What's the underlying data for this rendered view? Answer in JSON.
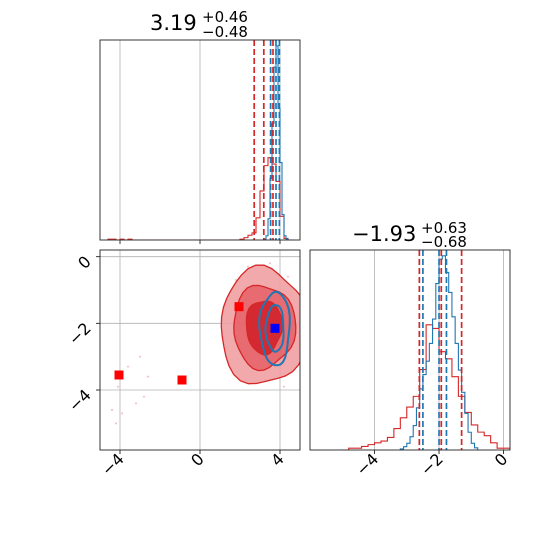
{
  "colors": {
    "red": "#d62728",
    "blue": "#1f77b4",
    "marker_blue": "#0000ff",
    "marker_red": "#ff0000",
    "red_fill_outer": "#f0a0a3",
    "red_fill_mid": "#e56469",
    "red_fill_inner": "#d3222a"
  },
  "chart_data": [
    {
      "type": "histogram",
      "panel": "top-left",
      "title": {
        "value": "3.19",
        "plus": "+0.46",
        "minus": "−0.48"
      },
      "xlim": [
        -5,
        5
      ],
      "grid": true,
      "series": [
        {
          "color": "red",
          "bin_edges": [
            -4.6,
            -4.4,
            -4.2,
            -4.0,
            -3.8,
            -3.6,
            -3.4,
            -3.2,
            -3.0,
            -2.8,
            -2.6,
            -2.4,
            -2.2,
            -2.0,
            -1.8,
            -1.6,
            -1.4,
            -1.2,
            -1.0,
            -0.8,
            -0.6,
            -0.4,
            -0.2,
            0.0,
            0.2,
            0.4,
            0.6,
            0.8,
            1.0,
            1.2,
            1.4,
            1.6,
            1.8,
            2.0,
            2.2,
            2.4,
            2.6,
            2.8,
            3.0,
            3.2,
            3.4,
            3.6,
            3.8,
            4.0,
            4.2,
            4.4,
            4.6
          ],
          "counts": [
            1,
            1,
            0,
            1,
            0,
            1,
            0,
            0,
            0,
            0,
            0,
            0,
            0,
            0,
            0,
            0,
            0,
            0,
            0,
            0,
            0,
            0,
            0,
            0,
            0,
            0,
            0,
            0,
            0,
            0,
            0,
            0,
            0,
            1,
            3,
            6,
            9,
            28,
            62,
            94,
            104,
            96,
            74,
            30,
            2,
            0
          ]
        },
        {
          "color": "blue",
          "bin_edges": [
            3.2,
            3.3,
            3.4,
            3.5,
            3.6,
            3.7,
            3.8,
            3.9,
            4.0,
            4.1,
            4.2,
            4.3,
            4.4,
            4.5
          ],
          "counts": [
            1,
            4,
            20,
            58,
            110,
            163,
            183,
            124,
            73,
            24,
            4,
            1,
            0
          ]
        }
      ],
      "quantiles": [
        {
          "color": "red",
          "values": [
            2.71,
            3.19,
            3.65
          ]
        },
        {
          "color": "blue",
          "values": [
            3.53,
            3.8,
            3.97
          ]
        }
      ]
    },
    {
      "type": "scatter",
      "panel": "bottom-left",
      "xlim": [
        -5,
        5
      ],
      "ylim": [
        -5.8,
        0.2
      ],
      "xticks": [
        "−4",
        "0",
        "4"
      ],
      "yticks": [
        "0",
        "−2",
        "−4"
      ],
      "grid": true,
      "red_contours": {
        "center": [
          3.2,
          -2.1
        ],
        "levels": [
          [
            2.2,
            1.75
          ],
          [
            1.55,
            1.25
          ],
          [
            0.9,
            0.8
          ]
        ]
      },
      "blue_contours": {
        "center": [
          3.75,
          -2.15
        ],
        "levels": [
          [
            0.75,
            1.1
          ],
          [
            0.45,
            0.7
          ]
        ]
      },
      "red_points": [
        [
          -4.1,
          -3.9
        ],
        [
          -3.6,
          -3.3
        ],
        [
          -3.2,
          -4.4
        ],
        [
          -2.8,
          -4.2
        ],
        [
          -4.4,
          -4.6
        ],
        [
          -3.0,
          -3.0
        ],
        [
          -2.6,
          -3.6
        ],
        [
          -4.2,
          -5.0
        ],
        [
          -3.9,
          -4.7
        ],
        [
          1.8,
          -0.7
        ],
        [
          2.2,
          -0.5
        ],
        [
          4.4,
          -0.6
        ],
        [
          1.6,
          -1.0
        ],
        [
          2.8,
          -3.4
        ],
        [
          4.2,
          -3.9
        ],
        [
          1.9,
          -3.1
        ],
        [
          2.4,
          -0.3
        ],
        [
          3.5,
          -0.2
        ]
      ],
      "markers": [
        {
          "shape": "square",
          "color": "marker_blue",
          "x": 3.75,
          "y": -2.15
        },
        {
          "shape": "square",
          "color": "marker_red",
          "x": 1.95,
          "y": -1.5
        },
        {
          "shape": "square",
          "color": "marker_red",
          "x": -4.05,
          "y": -3.55
        },
        {
          "shape": "square",
          "color": "marker_red",
          "x": -0.9,
          "y": -3.7
        }
      ]
    },
    {
      "type": "histogram",
      "panel": "bottom-right",
      "title": {
        "value": "−1.93",
        "plus": "+0.63",
        "minus": "−0.68"
      },
      "xlim": [
        -6,
        0.2
      ],
      "xticks": [
        "−4",
        "−2",
        "0"
      ],
      "grid": true,
      "series": [
        {
          "color": "red",
          "bin_edges": [
            -5.0,
            -4.8,
            -4.6,
            -4.4,
            -4.2,
            -4.0,
            -3.8,
            -3.6,
            -3.4,
            -3.2,
            -3.0,
            -2.8,
            -2.6,
            -2.4,
            -2.2,
            -2.0,
            -1.8,
            -1.6,
            -1.4,
            -1.2,
            -1.0,
            -0.8,
            -0.6,
            -0.4,
            -0.2,
            0.0,
            0.2
          ],
          "counts": [
            0,
            1,
            1,
            2,
            3,
            4,
            5,
            7,
            12,
            18,
            24,
            30,
            45,
            70,
            68,
            55,
            51,
            41,
            30,
            21,
            14,
            10,
            8,
            4,
            1,
            1
          ]
        },
        {
          "color": "blue",
          "bin_edges": [
            -3.2,
            -3.1,
            -3.0,
            -2.9,
            -2.8,
            -2.7,
            -2.6,
            -2.5,
            -2.4,
            -2.3,
            -2.2,
            -2.1,
            -2.0,
            -1.9,
            -1.8,
            -1.7,
            -1.6,
            -1.5,
            -1.4,
            -1.3,
            -1.2,
            -1.1,
            -1.0,
            -0.9,
            -0.8
          ],
          "counts": [
            1,
            3,
            6,
            12,
            22,
            38,
            55,
            68,
            80,
            96,
            118,
            150,
            172,
            175,
            160,
            142,
            120,
            96,
            72,
            52,
            33,
            16,
            6,
            2
          ]
        }
      ],
      "quantiles": [
        {
          "color": "red",
          "values": [
            -2.61,
            -1.93,
            -1.3
          ]
        },
        {
          "color": "blue",
          "values": [
            -2.5,
            -2.0,
            -1.77
          ]
        }
      ]
    }
  ]
}
